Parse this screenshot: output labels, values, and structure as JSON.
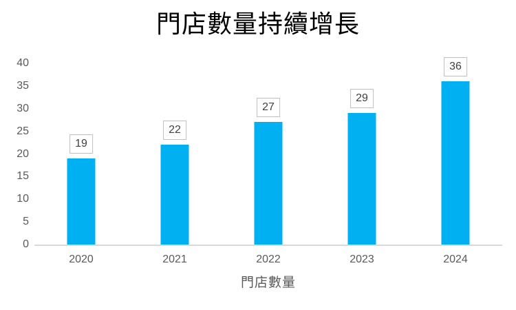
{
  "chart_data": {
    "type": "bar",
    "title": "門店數量持續增長",
    "categories": [
      "2020",
      "2021",
      "2022",
      "2023",
      "2024"
    ],
    "values": [
      19,
      22,
      27,
      29,
      36
    ],
    "data_labels": [
      "19",
      "22",
      "27",
      "29",
      "36"
    ],
    "xlabel": "門店數量",
    "ylabel": "",
    "ylim": [
      0,
      40
    ],
    "ytick_step": 5,
    "ytick_labels": [
      "0",
      "5",
      "10",
      "15",
      "20",
      "25",
      "30",
      "35",
      "40"
    ],
    "grid": false,
    "legend_position": "none",
    "colors": {
      "bar": "#00B0F0",
      "title_text": "#000000",
      "axis_text": "#595959",
      "axis_line": "#D9D9D9",
      "data_label_text": "#404040",
      "data_label_border": "#BFBFBF",
      "background": "#FFFFFF"
    }
  }
}
